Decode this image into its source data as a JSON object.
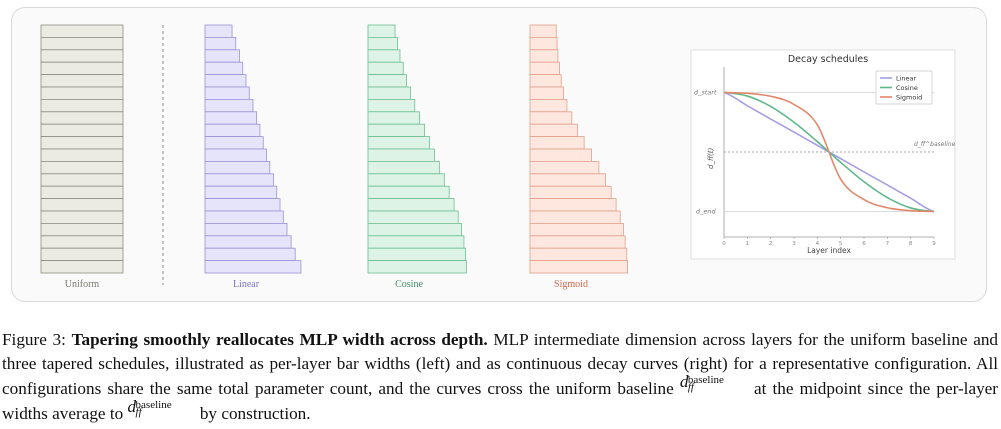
{
  "figure": {
    "columns": [
      {
        "name": "Uniform",
        "fill": "#ebebe1",
        "stroke": "#8e8e82",
        "label_color": "#7a7a70",
        "widths": [
          1,
          1,
          1,
          1,
          1,
          1,
          1,
          1,
          1,
          1,
          1,
          1,
          1,
          1,
          1,
          1,
          1,
          1,
          1,
          1
        ]
      },
      {
        "name": "Linear",
        "fill": "#e6e4fb",
        "stroke": "#9a93d6",
        "label_color": "#7b74c9",
        "widths": [
          0.33,
          0.375,
          0.42,
          0.46,
          0.5,
          0.54,
          0.585,
          0.63,
          0.67,
          0.71,
          0.75,
          0.79,
          0.835,
          0.875,
          0.915,
          0.955,
          1.0,
          1.05,
          1.1,
          1.17
        ]
      },
      {
        "name": "Cosine",
        "fill": "#dcf3e6",
        "stroke": "#6ebf93",
        "label_color": "#3f8f68",
        "widths": [
          0.33,
          0.36,
          0.39,
          0.43,
          0.47,
          0.52,
          0.57,
          0.63,
          0.69,
          0.75,
          0.81,
          0.87,
          0.93,
          0.99,
          1.05,
          1.1,
          1.14,
          1.17,
          1.19,
          1.2
        ]
      },
      {
        "name": "Sigmoid",
        "fill": "#fde7df",
        "stroke": "#e3a08a",
        "label_color": "#cc6a4b",
        "widths": [
          0.32,
          0.33,
          0.34,
          0.36,
          0.38,
          0.41,
          0.45,
          0.51,
          0.58,
          0.66,
          0.75,
          0.84,
          0.92,
          0.99,
          1.05,
          1.1,
          1.14,
          1.16,
          1.18,
          1.19
        ]
      }
    ]
  },
  "chart_data": {
    "type": "line",
    "title": "Decay schedules",
    "xlabel": "Layer index",
    "ylabel": "d_ff(ℓ)",
    "x": [
      0,
      1,
      2,
      3,
      4,
      5,
      6,
      7,
      8,
      9
    ],
    "xlim": [
      0,
      9
    ],
    "ylim": [
      0,
      1
    ],
    "y_ref_labels": {
      "start": "d_start",
      "baseline": "d_ff^baseline",
      "end": "d_end"
    },
    "y_ref_values": {
      "start": 0.85,
      "baseline": 0.5,
      "end": 0.15
    },
    "grid": false,
    "legend_position": "top-right",
    "series": [
      {
        "name": "Linear",
        "color": "#a79ee6",
        "values": [
          0.85,
          0.772,
          0.694,
          0.617,
          0.539,
          0.461,
          0.383,
          0.306,
          0.228,
          0.15
        ]
      },
      {
        "name": "Cosine",
        "color": "#5fb88a",
        "values": [
          0.85,
          0.829,
          0.768,
          0.675,
          0.561,
          0.439,
          0.325,
          0.232,
          0.171,
          0.15
        ]
      },
      {
        "name": "Sigmoid",
        "color": "#e3876a",
        "values": [
          0.85,
          0.845,
          0.828,
          0.78,
          0.66,
          0.34,
          0.22,
          0.172,
          0.155,
          0.15
        ]
      }
    ]
  },
  "caption": {
    "figure_label": "Figure",
    "figure_number": "3:",
    "title": "Tapering smoothly reallocates MLP width across depth.",
    "body_1": "MLP intermediate dimension across layers for the uniform baseline and three tapered schedules, illustrated as per-layer bar widths (left) and as continuous decay curves (right) for a representative configuration. All configurations share the same total parameter count, and the curves cross the uniform baseline",
    "body_2": "at the midpoint since the per-layer widths average to",
    "body_3": "by construction.",
    "math_symbol": "d",
    "math_sub": "ff",
    "math_sup": "baseline"
  }
}
